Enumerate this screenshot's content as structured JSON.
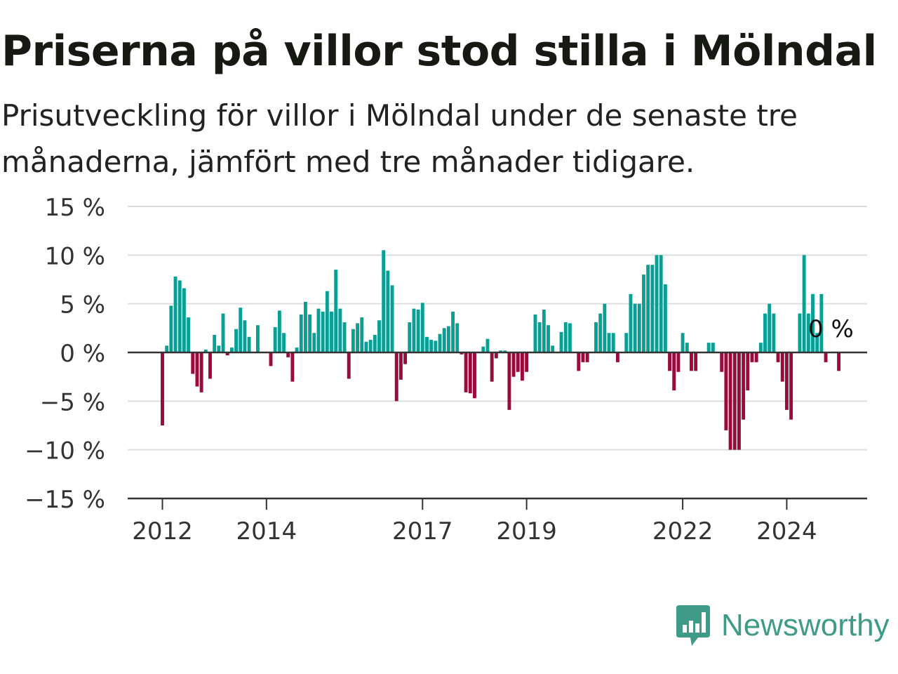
{
  "title": "Priserna på villor stod stilla i Mölndal",
  "subtitle": "Prisutveckling för villor i Mölndal under de senaste tre månaderna, jämfört med tre månader tidigare.",
  "brand": {
    "name": "Newsworthy"
  },
  "colors": {
    "positive": "#0a9f95",
    "negative": "#9a0b3c",
    "grid": "#dddddd",
    "axis": "#333333",
    "brand": "#3f9a88",
    "text": "#333333"
  },
  "chart_data": {
    "type": "bar",
    "title": "Priserna på villor stod stilla i Mölndal",
    "xlabel": "",
    "ylabel": "",
    "ylim": [
      -15,
      15
    ],
    "yticks": [
      15,
      10,
      5,
      0,
      -5,
      -10,
      -15
    ],
    "ytick_labels": [
      "15 %",
      "10 %",
      "5 %",
      "0 %",
      "−5 %",
      "−10 %",
      "−15 %"
    ],
    "xtick_labels": [
      "2012",
      "2014",
      "2017",
      "2019",
      "2022",
      "2024"
    ],
    "xtick_months": [
      0,
      24,
      60,
      84,
      120,
      144
    ],
    "first_month": "2012-01",
    "grid": true,
    "annotation": {
      "text": "0 %",
      "value": 0
    },
    "values": [
      -7.5,
      0.7,
      4.8,
      7.8,
      7.4,
      6.6,
      3.6,
      -2.2,
      -3.5,
      -4.1,
      0.3,
      -2.7,
      1.8,
      0.7,
      4.0,
      -0.3,
      0.5,
      2.4,
      4.6,
      3.3,
      1.6,
      0.0,
      2.8,
      0.0,
      0.0,
      -1.4,
      2.6,
      4.3,
      2.0,
      -0.5,
      -3.0,
      0.5,
      3.9,
      5.2,
      3.9,
      2.0,
      4.5,
      4.2,
      6.3,
      4.2,
      8.5,
      4.5,
      3.1,
      -2.7,
      2.4,
      3.0,
      3.6,
      1.1,
      1.3,
      1.8,
      3.3,
      10.5,
      8.4,
      6.9,
      -5.0,
      -2.8,
      -1.2,
      3.1,
      4.5,
      4.4,
      5.1,
      1.6,
      1.3,
      1.2,
      1.9,
      2.5,
      2.7,
      4.2,
      3.0,
      -0.2,
      -4.1,
      -4.2,
      -4.7,
      0.0,
      0.6,
      1.4,
      -3.0,
      -0.6,
      0.2,
      0.2,
      -5.9,
      -2.5,
      -2.0,
      -2.9,
      -2.0,
      0.0,
      3.9,
      3.1,
      4.4,
      2.8,
      0.7,
      0.0,
      2.1,
      3.1,
      3.0,
      0.0,
      -1.9,
      -1.0,
      -1.0,
      0.0,
      3.1,
      4.0,
      5.0,
      2.0,
      2.0,
      -1.0,
      0.0,
      2.0,
      6.0,
      5.0,
      5.0,
      8.0,
      9.0,
      9.0,
      10.0,
      10.0,
      7.0,
      -1.9,
      -3.9,
      -2.0,
      2.0,
      1.0,
      -1.9,
      -1.9,
      0.0,
      0.0,
      1.0,
      1.0,
      0.0,
      -2.0,
      -8.0,
      -10.0,
      -10.0,
      -10.0,
      -6.9,
      -3.9,
      -1.0,
      -1.0,
      1.0,
      4.0,
      5.0,
      4.0,
      -1.0,
      -3.0,
      -5.9,
      -6.9,
      0.0,
      4.0,
      10.0,
      4.0,
      6.0,
      2.0,
      6.0,
      -1.0,
      0.0,
      0.0,
      -1.9,
      0.0
    ]
  }
}
